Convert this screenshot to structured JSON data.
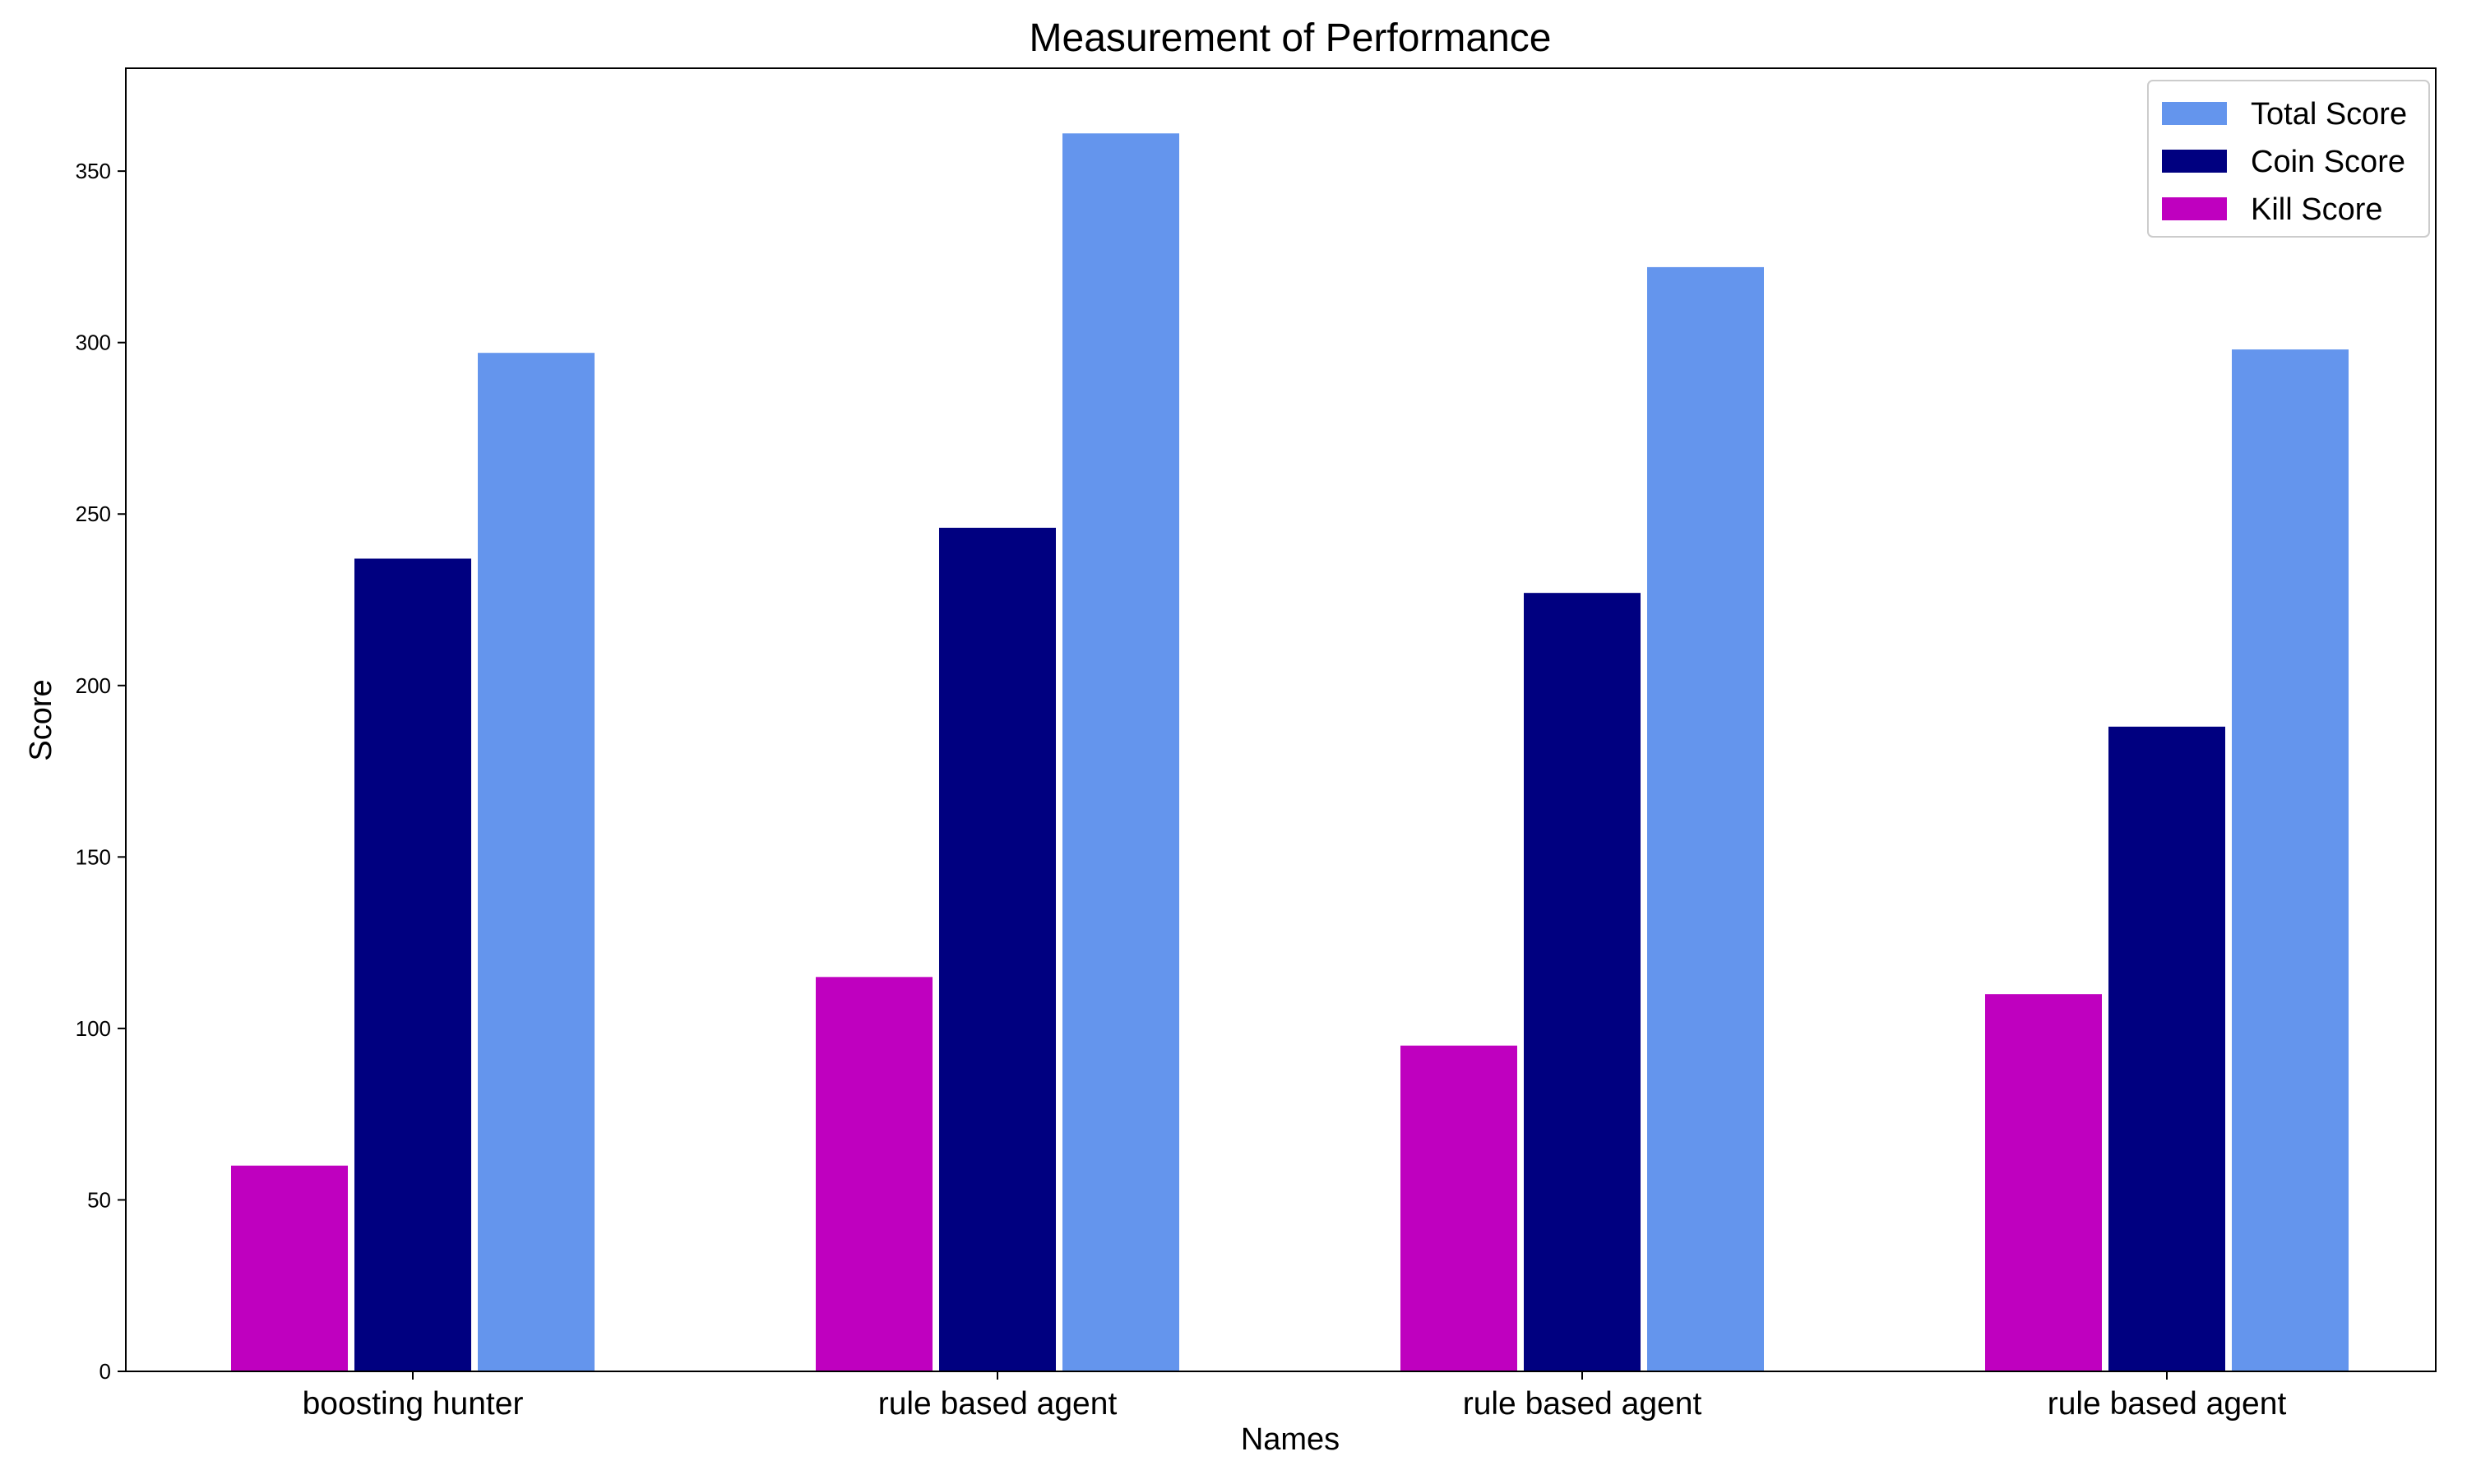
{
  "chart_data": {
    "type": "bar",
    "title": "Measurement of Performance",
    "xlabel": "Names",
    "ylabel": "Score",
    "categories": [
      "boosting hunter",
      "rule based agent",
      "rule based agent",
      "rule based agent"
    ],
    "series": [
      {
        "name": "Kill Score",
        "color": "#bf00bf",
        "values": [
          60,
          115,
          95,
          110
        ]
      },
      {
        "name": "Coin Score",
        "color": "#000080",
        "values": [
          237,
          246,
          227,
          188
        ]
      },
      {
        "name": "Total Score",
        "color": "#6495ed",
        "values": [
          297,
          361,
          322,
          298
        ]
      }
    ],
    "legend_order": [
      "Total Score",
      "Coin Score",
      "Kill Score"
    ],
    "legend_position": "top-right",
    "ylim": [
      0,
      380
    ],
    "yticks": [
      0,
      50,
      100,
      150,
      200,
      250,
      300,
      350
    ],
    "grid": false
  }
}
